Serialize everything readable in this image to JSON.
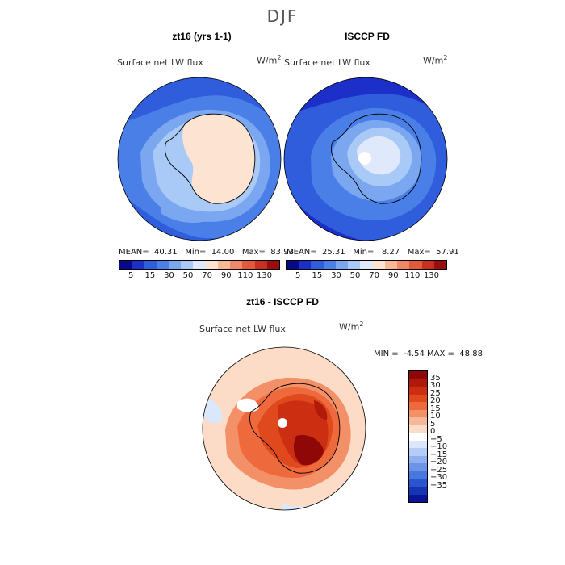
{
  "title": "DJF",
  "panels": {
    "model": {
      "heading": "zt16 (yrs 1-1)",
      "subtitle": "Surface net LW flux",
      "units_base": "W/m",
      "units_exp": "2",
      "stats": {
        "mean_label": "MEAN=",
        "mean": "40.31",
        "min_label": "Min=",
        "min": "14.00",
        "max_label": "Max=",
        "max": "83.93"
      }
    },
    "obs": {
      "heading": "ISCCP FD",
      "subtitle": "Surface net LW flux",
      "units_base": "W/m",
      "units_exp": "2",
      "stats": {
        "mean_label": "MEAN=",
        "mean": "25.31",
        "min_label": "Min=",
        "min": "8.27",
        "max_label": "Max=",
        "max": "57.91"
      }
    },
    "diff": {
      "heading": "zt16 - ISCCP FD",
      "subtitle": "Surface net LW flux",
      "units_base": "W/m",
      "units_exp": "2",
      "stats": {
        "min_label": "MIN =",
        "min": "-4.54",
        "max_label": "MAX =",
        "max": "48.88"
      }
    }
  },
  "colorbar_top": {
    "labels": [
      "5",
      "15",
      "30",
      "50",
      "70",
      "90",
      "110",
      "130"
    ],
    "colors": [
      "#08088a",
      "#1c2fc9",
      "#2f5ddc",
      "#4a7fe8",
      "#7aa7f0",
      "#a9c9f6",
      "#dfe9fb",
      "#fde4d2",
      "#f7b898",
      "#f0876a",
      "#e25a3c",
      "#c73020",
      "#9c0e0e"
    ]
  },
  "colorbar_diff": {
    "labels": [
      "35",
      "30",
      "25",
      "20",
      "15",
      "10",
      "5",
      "0",
      "−5",
      "−10",
      "−15",
      "−20",
      "−25",
      "−30",
      "−35"
    ],
    "colors": [
      "#8f0707",
      "#b01a0a",
      "#cc2e12",
      "#e0481e",
      "#ee6a3c",
      "#f49068",
      "#f8b798",
      "#fcdcc6",
      "#ffffff",
      "#dbe7fb",
      "#b5ccf6",
      "#8eb0f0",
      "#6b93e8",
      "#4877de",
      "#2a55cf",
      "#1634b5",
      "#0a1495"
    ]
  }
}
